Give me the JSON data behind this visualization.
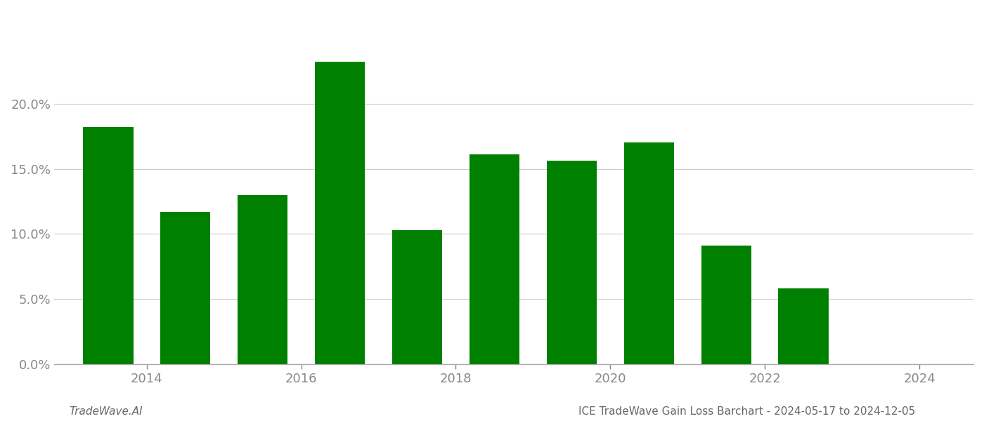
{
  "years": [
    2013.5,
    2014.5,
    2015.5,
    2016.5,
    2017.5,
    2018.5,
    2019.5,
    2020.5,
    2021.5,
    2022.5
  ],
  "values": [
    0.182,
    0.117,
    0.13,
    0.232,
    0.103,
    0.161,
    0.156,
    0.17,
    0.091,
    0.058
  ],
  "bar_color": "#008000",
  "background_color": "#ffffff",
  "footer_left": "TradeWave.AI",
  "footer_right": "ICE TradeWave Gain Loss Barchart - 2024-05-17 to 2024-12-05",
  "ytick_labels": [
    "0.0%",
    "5.0%",
    "10.0%",
    "15.0%",
    "20.0%"
  ],
  "ytick_values": [
    0.0,
    0.05,
    0.1,
    0.15,
    0.2
  ],
  "xtick_values": [
    2014,
    2016,
    2018,
    2020,
    2022,
    2024
  ],
  "xlim": [
    2012.8,
    2024.7
  ],
  "ylim": [
    0.0,
    0.265
  ],
  "bar_width": 0.65
}
